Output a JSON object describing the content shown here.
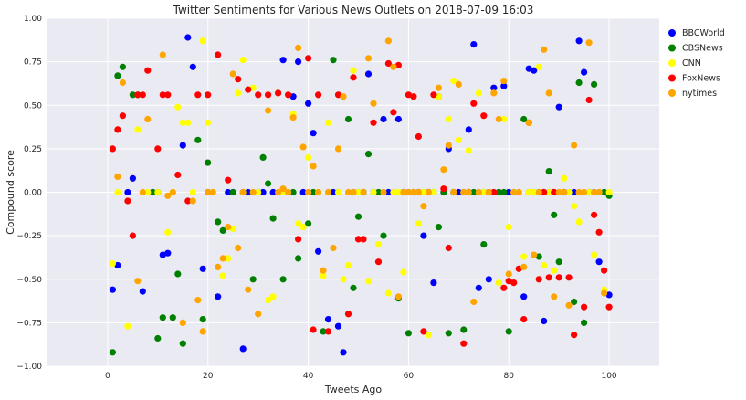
{
  "chart_data": {
    "type": "scatter",
    "title": "Twitter Sentiments for Various News Outlets on 2018-07-09 16:03",
    "xlabel": "Tweets Ago",
    "ylabel": "Compound score",
    "xlim": [
      -12,
      110
    ],
    "ylim": [
      -1.0,
      1.0
    ],
    "xticks": [
      0,
      20,
      40,
      60,
      80,
      100
    ],
    "yticks": [
      -1.0,
      -0.75,
      -0.5,
      -0.25,
      0.0,
      0.25,
      0.5,
      0.75,
      1.0
    ],
    "xtick_labels": [
      "0",
      "20",
      "40",
      "60",
      "80",
      "100"
    ],
    "ytick_labels": [
      "−1.00",
      "−0.75",
      "−0.50",
      "−0.25",
      "0.00",
      "0.25",
      "0.50",
      "0.75",
      "1.00"
    ],
    "grid": true,
    "legend_position": "outside-right-top",
    "background": "#eaeaf2",
    "series": [
      {
        "name": "BBCWorld",
        "color": "#0000ff",
        "x": [
          1,
          2,
          4,
          5,
          7,
          9,
          10,
          11,
          12,
          15,
          16,
          17,
          19,
          20,
          22,
          24,
          25,
          27,
          28,
          30,
          31,
          33,
          35,
          37,
          38,
          39,
          40,
          41,
          42,
          44,
          45,
          46,
          47,
          49,
          50,
          51,
          52,
          53,
          55,
          56,
          58,
          59,
          60,
          61,
          62,
          63,
          64,
          65,
          66,
          67,
          68,
          70,
          71,
          72,
          73,
          74,
          75,
          76,
          77,
          78,
          79,
          80,
          81,
          83,
          84,
          85,
          86,
          87,
          88,
          89,
          90,
          91,
          92,
          93,
          94,
          95,
          96,
          97,
          98,
          99,
          100
        ],
        "y": [
          -0.56,
          -0.42,
          0.0,
          0.08,
          -0.57,
          0.0,
          0.0,
          -0.36,
          -0.35,
          0.27,
          0.89,
          0.72,
          -0.44,
          0.0,
          -0.6,
          0.0,
          0.0,
          -0.9,
          0.0,
          0.0,
          0.0,
          0.0,
          0.76,
          0.55,
          0.75,
          0.0,
          0.51,
          0.34,
          -0.34,
          -0.73,
          0.0,
          -0.77,
          -0.92,
          0.0,
          0.0,
          0.0,
          0.68,
          0.0,
          0.42,
          0.0,
          0.42,
          0.0,
          0.0,
          0.0,
          0.0,
          -0.25,
          0.0,
          -0.52,
          0.55,
          0.0,
          0.25,
          0.0,
          0.0,
          0.36,
          0.85,
          -0.55,
          0.0,
          -0.5,
          0.6,
          0.0,
          0.61,
          0.0,
          0.0,
          -0.6,
          0.71,
          0.7,
          0.0,
          -0.74,
          0.0,
          0.0,
          0.49,
          0.0,
          0.0,
          0.0,
          0.87,
          0.69,
          0.0,
          0.0,
          -0.4,
          0.0,
          -0.59
        ]
      },
      {
        "name": "CBSNews",
        "color": "#008000",
        "x": [
          1,
          2,
          3,
          5,
          6,
          9,
          10,
          11,
          13,
          14,
          15,
          18,
          19,
          20,
          22,
          23,
          25,
          27,
          29,
          31,
          32,
          33,
          35,
          37,
          38,
          40,
          41,
          43,
          45,
          46,
          48,
          49,
          50,
          51,
          52,
          54,
          55,
          57,
          58,
          59,
          60,
          61,
          62,
          63,
          64,
          65,
          66,
          67,
          68,
          69,
          71,
          72,
          73,
          75,
          76,
          78,
          79,
          80,
          82,
          83,
          84,
          85,
          86,
          87,
          88,
          89,
          90,
          91,
          93,
          94,
          95,
          96,
          97,
          98,
          99,
          100
        ],
        "y": [
          -0.92,
          0.67,
          0.72,
          0.56,
          0.56,
          0.0,
          -0.84,
          -0.72,
          -0.72,
          -0.47,
          -0.87,
          0.3,
          -0.73,
          0.17,
          -0.17,
          -0.22,
          0.0,
          0.0,
          -0.5,
          0.2,
          0.05,
          -0.15,
          -0.5,
          0.0,
          -0.38,
          -0.18,
          0.0,
          -0.8,
          0.76,
          0.0,
          0.42,
          -0.55,
          -0.14,
          0.0,
          0.22,
          0.0,
          -0.25,
          0.0,
          -0.61,
          0.0,
          -0.81,
          0.0,
          0.0,
          0.0,
          0.0,
          0.0,
          -0.2,
          0.0,
          -0.81,
          0.0,
          -0.79,
          0.0,
          0.0,
          -0.3,
          0.0,
          0.0,
          0.0,
          -0.8,
          0.0,
          0.42,
          0.0,
          0.0,
          -0.37,
          0.0,
          0.12,
          -0.13,
          -0.4,
          0.0,
          -0.63,
          0.63,
          -0.75,
          0.0,
          0.62,
          0.0,
          0.0,
          -0.02
        ]
      },
      {
        "name": "CNN",
        "color": "#ffff00",
        "x": [
          1,
          2,
          4,
          6,
          8,
          10,
          12,
          13,
          14,
          15,
          16,
          17,
          19,
          20,
          21,
          23,
          24,
          25,
          26,
          27,
          29,
          30,
          32,
          33,
          35,
          37,
          38,
          39,
          40,
          42,
          43,
          44,
          46,
          47,
          48,
          49,
          50,
          52,
          53,
          54,
          56,
          57,
          58,
          59,
          61,
          62,
          63,
          64,
          65,
          66,
          68,
          69,
          70,
          71,
          72,
          74,
          75,
          77,
          78,
          79,
          80,
          81,
          82,
          83,
          84,
          85,
          86,
          87,
          88,
          89,
          90,
          91,
          92,
          93,
          94,
          95,
          96,
          97,
          98,
          99,
          100
        ],
        "y": [
          -0.41,
          0.0,
          -0.77,
          0.36,
          0.0,
          0.0,
          -0.23,
          0.0,
          0.49,
          0.4,
          0.4,
          0.0,
          0.87,
          0.4,
          0.0,
          -0.48,
          -0.38,
          -0.21,
          0.57,
          0.76,
          0.6,
          0.0,
          -0.62,
          -0.6,
          0.0,
          0.45,
          -0.18,
          -0.2,
          0.2,
          0.0,
          -0.48,
          0.4,
          0.0,
          -0.5,
          -0.42,
          0.7,
          0.0,
          -0.51,
          0.0,
          -0.3,
          -0.58,
          0.0,
          0.0,
          -0.46,
          0.0,
          -0.18,
          0.0,
          -0.82,
          0.0,
          0.55,
          0.42,
          0.64,
          0.3,
          0.0,
          0.24,
          0.57,
          0.0,
          0.0,
          -0.52,
          0.42,
          -0.2,
          0.0,
          0.0,
          -0.37,
          0.0,
          0.0,
          0.72,
          -0.42,
          0.0,
          -0.45,
          0.0,
          0.08,
          0.0,
          -0.08,
          -0.17,
          0.0,
          0.0,
          -0.36,
          0.0,
          -0.56,
          0.0
        ]
      },
      {
        "name": "FoxNews",
        "color": "#ff0000",
        "x": [
          1,
          2,
          3,
          4,
          5,
          6,
          7,
          8,
          10,
          11,
          12,
          14,
          16,
          18,
          20,
          22,
          24,
          26,
          28,
          30,
          32,
          34,
          36,
          38,
          40,
          41,
          42,
          44,
          46,
          48,
          49,
          50,
          51,
          53,
          54,
          56,
          57,
          58,
          60,
          61,
          62,
          63,
          65,
          67,
          68,
          69,
          71,
          72,
          73,
          75,
          76,
          77,
          79,
          80,
          81,
          82,
          83,
          84,
          86,
          87,
          88,
          89,
          90,
          91,
          92,
          93,
          95,
          96,
          97,
          98,
          99,
          100
        ],
        "y": [
          0.25,
          0.36,
          0.44,
          -0.05,
          -0.25,
          0.56,
          0.56,
          0.7,
          0.25,
          0.56,
          0.56,
          0.1,
          -0.05,
          0.56,
          0.56,
          0.79,
          0.07,
          0.65,
          0.59,
          0.56,
          0.56,
          0.57,
          0.56,
          -0.27,
          0.77,
          -0.79,
          0.56,
          -0.8,
          0.56,
          -0.7,
          0.66,
          -0.27,
          -0.27,
          0.4,
          -0.4,
          0.74,
          0.46,
          0.73,
          0.56,
          0.55,
          0.32,
          -0.8,
          0.56,
          0.02,
          -0.32,
          0.0,
          -0.87,
          0.0,
          0.51,
          0.44,
          0.0,
          0.0,
          -0.55,
          -0.51,
          -0.52,
          -0.44,
          -0.73,
          0.4,
          -0.5,
          0.0,
          -0.49,
          0.0,
          -0.49,
          0.0,
          -0.49,
          -0.82,
          -0.66,
          0.53,
          -0.13,
          -0.23,
          -0.45,
          -0.66
        ]
      },
      {
        "name": "nytimes",
        "color": "#ffa500",
        "x": [
          2,
          3,
          6,
          7,
          8,
          11,
          12,
          13,
          15,
          17,
          18,
          19,
          20,
          21,
          22,
          23,
          24,
          25,
          26,
          27,
          28,
          29,
          30,
          32,
          34,
          35,
          36,
          37,
          38,
          39,
          40,
          41,
          42,
          43,
          44,
          45,
          46,
          47,
          48,
          49,
          51,
          52,
          53,
          55,
          56,
          57,
          58,
          59,
          60,
          61,
          62,
          63,
          64,
          66,
          67,
          68,
          69,
          70,
          71,
          72,
          73,
          74,
          76,
          77,
          78,
          79,
          80,
          81,
          82,
          83,
          84,
          85,
          86,
          87,
          88,
          89,
          90,
          91,
          92,
          93,
          94,
          95,
          96,
          97,
          98,
          99
        ],
        "y": [
          0.09,
          0.63,
          -0.51,
          0.0,
          0.42,
          0.79,
          -0.02,
          0.0,
          -0.75,
          -0.05,
          -0.62,
          -0.8,
          0.0,
          0.0,
          -0.43,
          -0.38,
          -0.2,
          0.68,
          -0.32,
          0.0,
          -0.56,
          0.0,
          -0.7,
          0.47,
          0.0,
          0.02,
          0.0,
          0.43,
          0.83,
          0.26,
          0.0,
          0.15,
          0.0,
          -0.45,
          0.0,
          -0.32,
          0.25,
          0.55,
          0.0,
          0.0,
          0.0,
          0.77,
          0.51,
          0.0,
          0.87,
          0.72,
          -0.6,
          0.0,
          0.0,
          0.0,
          0.0,
          -0.08,
          0.0,
          0.6,
          0.13,
          0.27,
          0.0,
          0.62,
          0.0,
          0.0,
          -0.63,
          0.0,
          0.0,
          0.57,
          0.42,
          0.64,
          -0.47,
          0.0,
          0.0,
          -0.43,
          0.4,
          -0.36,
          0.0,
          0.82,
          0.57,
          -0.6,
          0.0,
          0.0,
          -0.65,
          0.27,
          0.0,
          0.0,
          0.86,
          0.0,
          0.0,
          -0.58
        ]
      }
    ]
  }
}
